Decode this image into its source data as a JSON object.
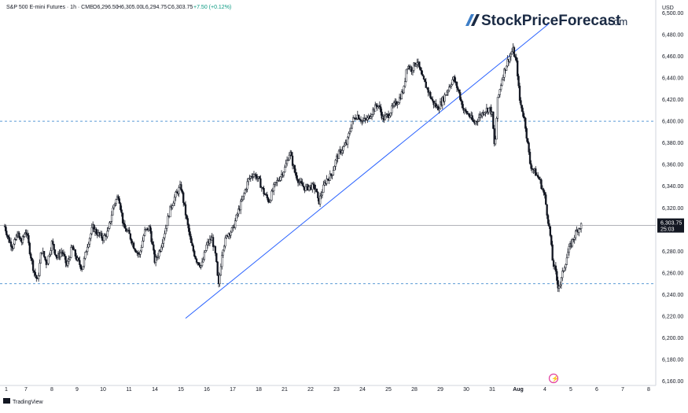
{
  "header": {
    "symbol": "S&P 500 E-mini Futures · 1h · CME",
    "open": "O6,296.50",
    "high": "H6,305.00",
    "low": "L6,294.75",
    "close": "C6,303.75",
    "change": "+7.50 (+0.12%)"
  },
  "brand": {
    "name": "StockPriceForecast",
    "suffix": ".com",
    "tradingview": "TradingView"
  },
  "colors": {
    "candles": "#131722",
    "trendline": "#2962ff",
    "hline": "#5b9bd5",
    "price_line": "#9598a1",
    "last_price_bg": "#131722",
    "grid_text": "#131722",
    "brand_dark": "#1a2a44",
    "brand_blue": "#3d7ec7",
    "event_marker": "#e040a0"
  },
  "chart_data": {
    "type": "candlestick",
    "title": "S&P 500 E-mini Futures",
    "currency": "USD",
    "ylim": [
      6156,
      6512
    ],
    "y_ticks": [
      "6,500.00",
      "6,480.00",
      "6,460.00",
      "6,440.00",
      "6,420.00",
      "6,400.00",
      "6,380.00",
      "6,360.00",
      "6,340.00",
      "6,320.00",
      "6,300.00",
      "6,280.00",
      "6,260.00",
      "6,240.00",
      "6,220.00",
      "6,200.00",
      "6,180.00",
      "6,160.00"
    ],
    "x_ticks": [
      "1",
      "7",
      "8",
      "9",
      "10",
      "11",
      "14",
      "15",
      "16",
      "17",
      "18",
      "21",
      "22",
      "23",
      "24",
      "25",
      "28",
      "29",
      "30",
      "31",
      "Aug",
      "4",
      "5",
      "6",
      "7",
      "8"
    ],
    "last_price": "6,303.75",
    "countdown": "25:03",
    "horizontal_lines": [
      6400,
      6250
    ],
    "trendline": {
      "start": [
        "Jul 15",
        6218
      ],
      "end": [
        "Aug 1",
        6490
      ]
    },
    "price_path": [
      [
        0,
        6303
      ],
      [
        0.2,
        6290
      ],
      [
        0.4,
        6284
      ],
      [
        0.6,
        6296
      ],
      [
        0.8,
        6288
      ],
      [
        1.0,
        6300
      ],
      [
        1.15,
        6280
      ],
      [
        1.3,
        6262
      ],
      [
        1.45,
        6252
      ],
      [
        1.6,
        6282
      ],
      [
        1.8,
        6268
      ],
      [
        2.0,
        6288
      ],
      [
        2.2,
        6274
      ],
      [
        2.4,
        6280
      ],
      [
        2.6,
        6266
      ],
      [
        2.8,
        6284
      ],
      [
        3.0,
        6272
      ],
      [
        3.2,
        6264
      ],
      [
        3.4,
        6286
      ],
      [
        3.6,
        6302
      ],
      [
        3.8,
        6296
      ],
      [
        4.0,
        6292
      ],
      [
        4.2,
        6298
      ],
      [
        4.4,
        6322
      ],
      [
        4.6,
        6332
      ],
      [
        4.8,
        6302
      ],
      [
        5.0,
        6296
      ],
      [
        5.2,
        6284
      ],
      [
        5.4,
        6276
      ],
      [
        5.6,
        6298
      ],
      [
        5.8,
        6302
      ],
      [
        6.0,
        6270
      ],
      [
        6.2,
        6282
      ],
      [
        6.4,
        6300
      ],
      [
        6.6,
        6320
      ],
      [
        6.8,
        6332
      ],
      [
        7.0,
        6340
      ],
      [
        7.2,
        6312
      ],
      [
        7.4,
        6286
      ],
      [
        7.6,
        6272
      ],
      [
        7.8,
        6266
      ],
      [
        8.0,
        6286
      ],
      [
        8.2,
        6292
      ],
      [
        8.35,
        6274
      ],
      [
        8.45,
        6246
      ],
      [
        8.6,
        6282
      ],
      [
        8.8,
        6296
      ],
      [
        9.0,
        6300
      ],
      [
        9.2,
        6316
      ],
      [
        9.4,
        6330
      ],
      [
        9.6,
        6346
      ],
      [
        9.8,
        6352
      ],
      [
        10.0,
        6346
      ],
      [
        10.2,
        6334
      ],
      [
        10.4,
        6326
      ],
      [
        10.6,
        6340
      ],
      [
        10.8,
        6348
      ],
      [
        11.0,
        6356
      ],
      [
        11.2,
        6372
      ],
      [
        11.4,
        6352
      ],
      [
        11.6,
        6342
      ],
      [
        11.8,
        6338
      ],
      [
        12.0,
        6340
      ],
      [
        12.2,
        6338
      ],
      [
        12.3,
        6324
      ],
      [
        12.4,
        6332
      ],
      [
        12.6,
        6346
      ],
      [
        12.8,
        6350
      ],
      [
        13.0,
        6366
      ],
      [
        13.2,
        6374
      ],
      [
        13.4,
        6380
      ],
      [
        13.6,
        6400
      ],
      [
        13.8,
        6406
      ],
      [
        14.0,
        6400
      ],
      [
        14.2,
        6402
      ],
      [
        14.4,
        6410
      ],
      [
        14.6,
        6416
      ],
      [
        14.8,
        6402
      ],
      [
        15.0,
        6406
      ],
      [
        15.2,
        6414
      ],
      [
        15.4,
        6420
      ],
      [
        15.6,
        6430
      ],
      [
        15.7,
        6452
      ],
      [
        15.9,
        6448
      ],
      [
        16.1,
        6456
      ],
      [
        16.3,
        6440
      ],
      [
        16.5,
        6430
      ],
      [
        16.7,
        6418
      ],
      [
        16.9,
        6412
      ],
      [
        17.1,
        6420
      ],
      [
        17.3,
        6430
      ],
      [
        17.5,
        6440
      ],
      [
        17.7,
        6428
      ],
      [
        17.9,
        6410
      ],
      [
        18.1,
        6406
      ],
      [
        18.3,
        6398
      ],
      [
        18.5,
        6404
      ],
      [
        18.7,
        6410
      ],
      [
        18.9,
        6412
      ],
      [
        19.0,
        6406
      ],
      [
        19.1,
        6372
      ],
      [
        19.2,
        6418
      ],
      [
        19.4,
        6442
      ],
      [
        19.6,
        6456
      ],
      [
        19.8,
        6466
      ],
      [
        19.95,
        6452
      ],
      [
        20.05,
        6420
      ],
      [
        20.15,
        6410
      ],
      [
        20.25,
        6400
      ],
      [
        20.35,
        6380
      ],
      [
        20.45,
        6360
      ],
      [
        20.6,
        6354
      ],
      [
        20.8,
        6346
      ],
      [
        21.0,
        6330
      ],
      [
        21.1,
        6312
      ],
      [
        21.2,
        6296
      ],
      [
        21.3,
        6270
      ],
      [
        21.4,
        6262
      ],
      [
        21.5,
        6248
      ],
      [
        21.6,
        6250
      ],
      [
        21.7,
        6262
      ],
      [
        21.8,
        6270
      ],
      [
        21.9,
        6280
      ],
      [
        22.0,
        6286
      ],
      [
        22.1,
        6292
      ],
      [
        22.25,
        6300
      ],
      [
        22.4,
        6304
      ]
    ],
    "x_unit_note_free": true
  },
  "event_marker": {
    "symbol": "⚡"
  }
}
